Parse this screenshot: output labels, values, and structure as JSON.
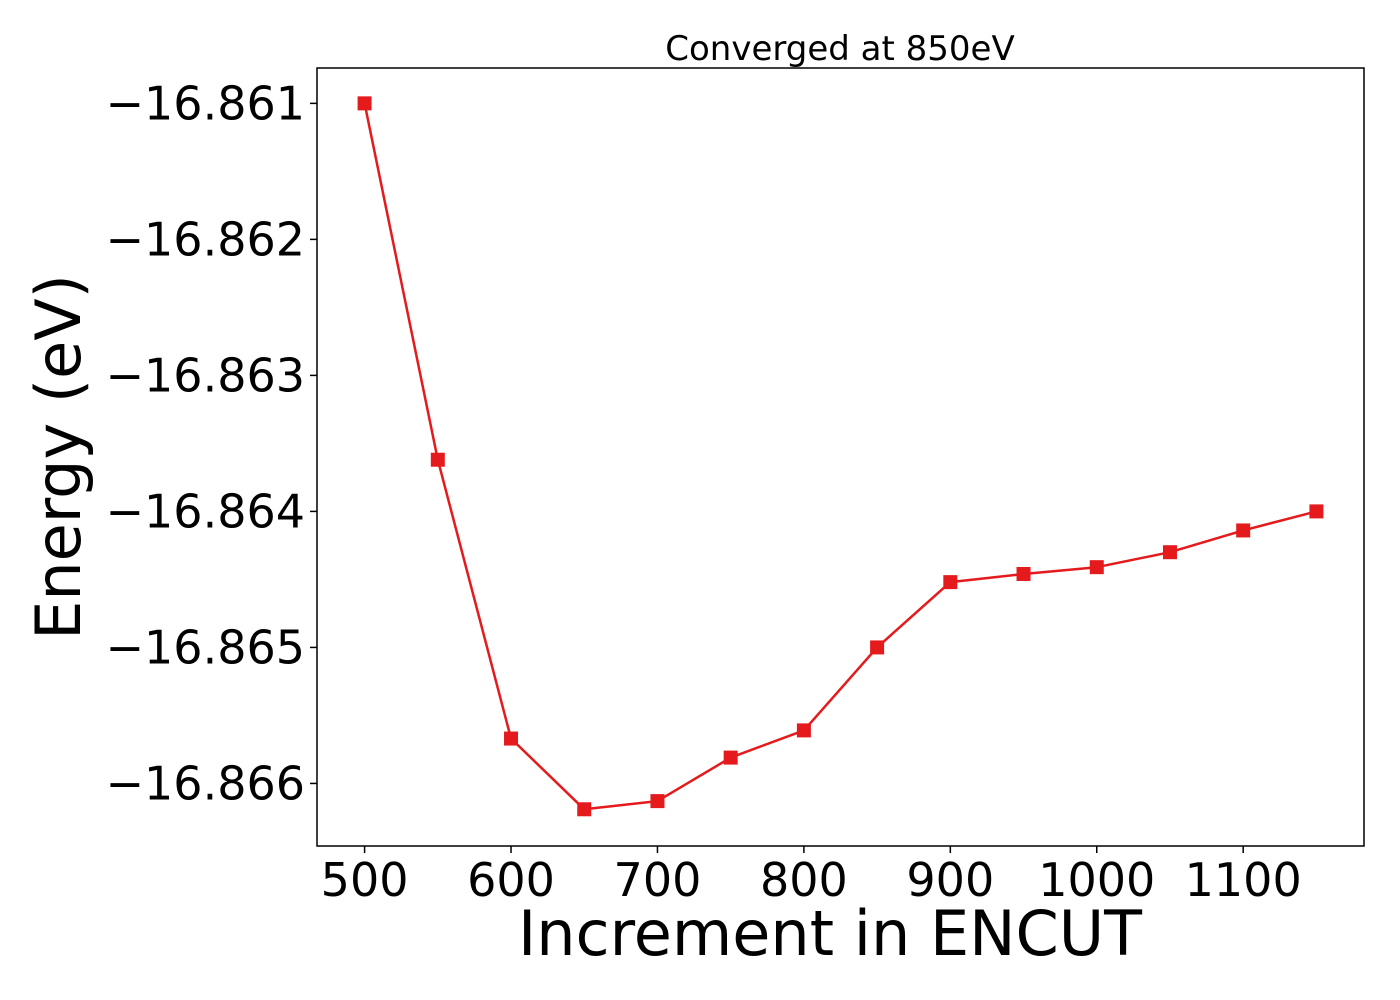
{
  "chart_data": {
    "type": "line",
    "title": "Converged at 850eV",
    "xlabel": "Increment in ENCUT",
    "ylabel": "Energy (eV)",
    "x": [
      500,
      550,
      600,
      650,
      700,
      750,
      800,
      850,
      900,
      950,
      1000,
      1050,
      1100,
      1150
    ],
    "series": [
      {
        "values": [
          -16.861,
          -16.86362,
          -16.86567,
          -16.86619,
          -16.86613,
          -16.86581,
          -16.86561,
          -16.865,
          -16.86452,
          -16.86446,
          -16.86441,
          -16.8643,
          -16.86414,
          -16.864
        ],
        "color": "#e41a1c",
        "marker": "square"
      }
    ],
    "xticks": [
      500,
      600,
      700,
      800,
      900,
      1000,
      1100
    ],
    "xtick_labels": [
      "500",
      "600",
      "700",
      "800",
      "900",
      "1000",
      "1100"
    ],
    "yticks": [
      -16.861,
      -16.862,
      -16.863,
      -16.864,
      -16.865,
      -16.866
    ],
    "ytick_labels": [
      "−16.861",
      "−16.862",
      "−16.863",
      "−16.864",
      "−16.865",
      "−16.866"
    ],
    "xlim": [
      467.5,
      1182.5
    ],
    "ylim": [
      -16.86646,
      -16.86074
    ],
    "grid": false,
    "legend": "none"
  }
}
